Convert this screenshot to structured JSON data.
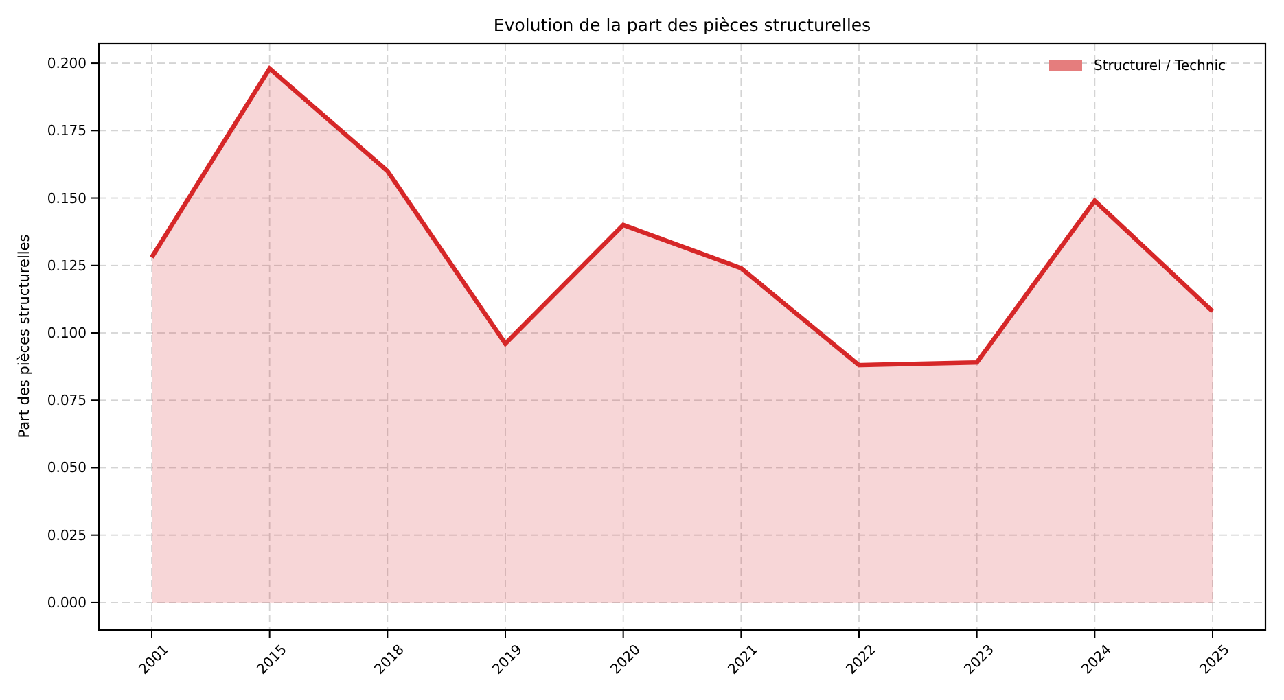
{
  "chart_data": {
    "type": "area",
    "title": "Evolution de la part des pièces structurelles",
    "xlabel": "",
    "ylabel": "Part des pièces structurelles",
    "categories": [
      "2001",
      "2015",
      "2018",
      "2019",
      "2020",
      "2021",
      "2022",
      "2023",
      "2024",
      "2025"
    ],
    "series": [
      {
        "name": "Structurel / Technic",
        "values": [
          0.128,
          0.198,
          0.16,
          0.096,
          0.14,
          0.124,
          0.088,
          0.089,
          0.149,
          0.108
        ]
      }
    ],
    "yticks": [
      0.0,
      0.025,
      0.05,
      0.075,
      0.1,
      0.125,
      0.15,
      0.175,
      0.2
    ],
    "ytick_decimals": 3,
    "ylim": [
      -0.0102,
      0.2074
    ],
    "baseline": 0.0,
    "grid": true,
    "xtick_rotation_deg": 45,
    "legend": {
      "position": "upper right",
      "frame": false,
      "entries": [
        {
          "label": "Structurel / Technic",
          "swatch_color": "#e57d7d"
        }
      ]
    },
    "colors": {
      "line": "#d62728",
      "fill": "rgba(214,39,40,0.19)",
      "grid": "#d4d4d4",
      "spine": "#000000",
      "tick": "#000000",
      "text": "#000000"
    }
  }
}
